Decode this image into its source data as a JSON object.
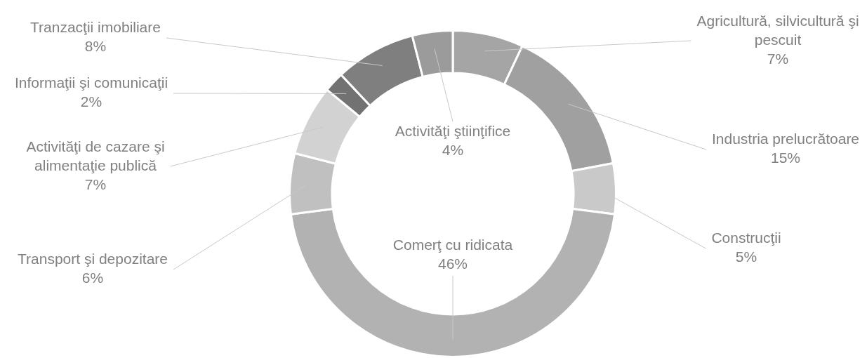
{
  "chart_data": {
    "type": "donut",
    "categories": [
      "Agricultură, silvicultură şi pescuit",
      "Industria prelucrătoare",
      "Construcţii",
      "Comerţ cu ridicata",
      "Transport şi depozitare",
      "Activităţi de cazare şi alimentaţie publică",
      "Informaţii şi comunicaţii",
      "Tranzacţii imobiliare",
      "Activităţi ştiinţifice"
    ],
    "values": [
      7,
      15,
      5,
      46,
      6,
      7,
      2,
      8,
      4
    ],
    "value_labels": [
      "7%",
      "15%",
      "5%",
      "46%",
      "6%",
      "7%",
      "2%",
      "8%",
      "4%"
    ],
    "colors": [
      "#a5a5a5",
      "#a0a0a0",
      "#c9c9c9",
      "#b2b2b2",
      "#c0c0c0",
      "#d2d2d2",
      "#727272",
      "#7f7f7f",
      "#9b9b9b"
    ]
  }
}
